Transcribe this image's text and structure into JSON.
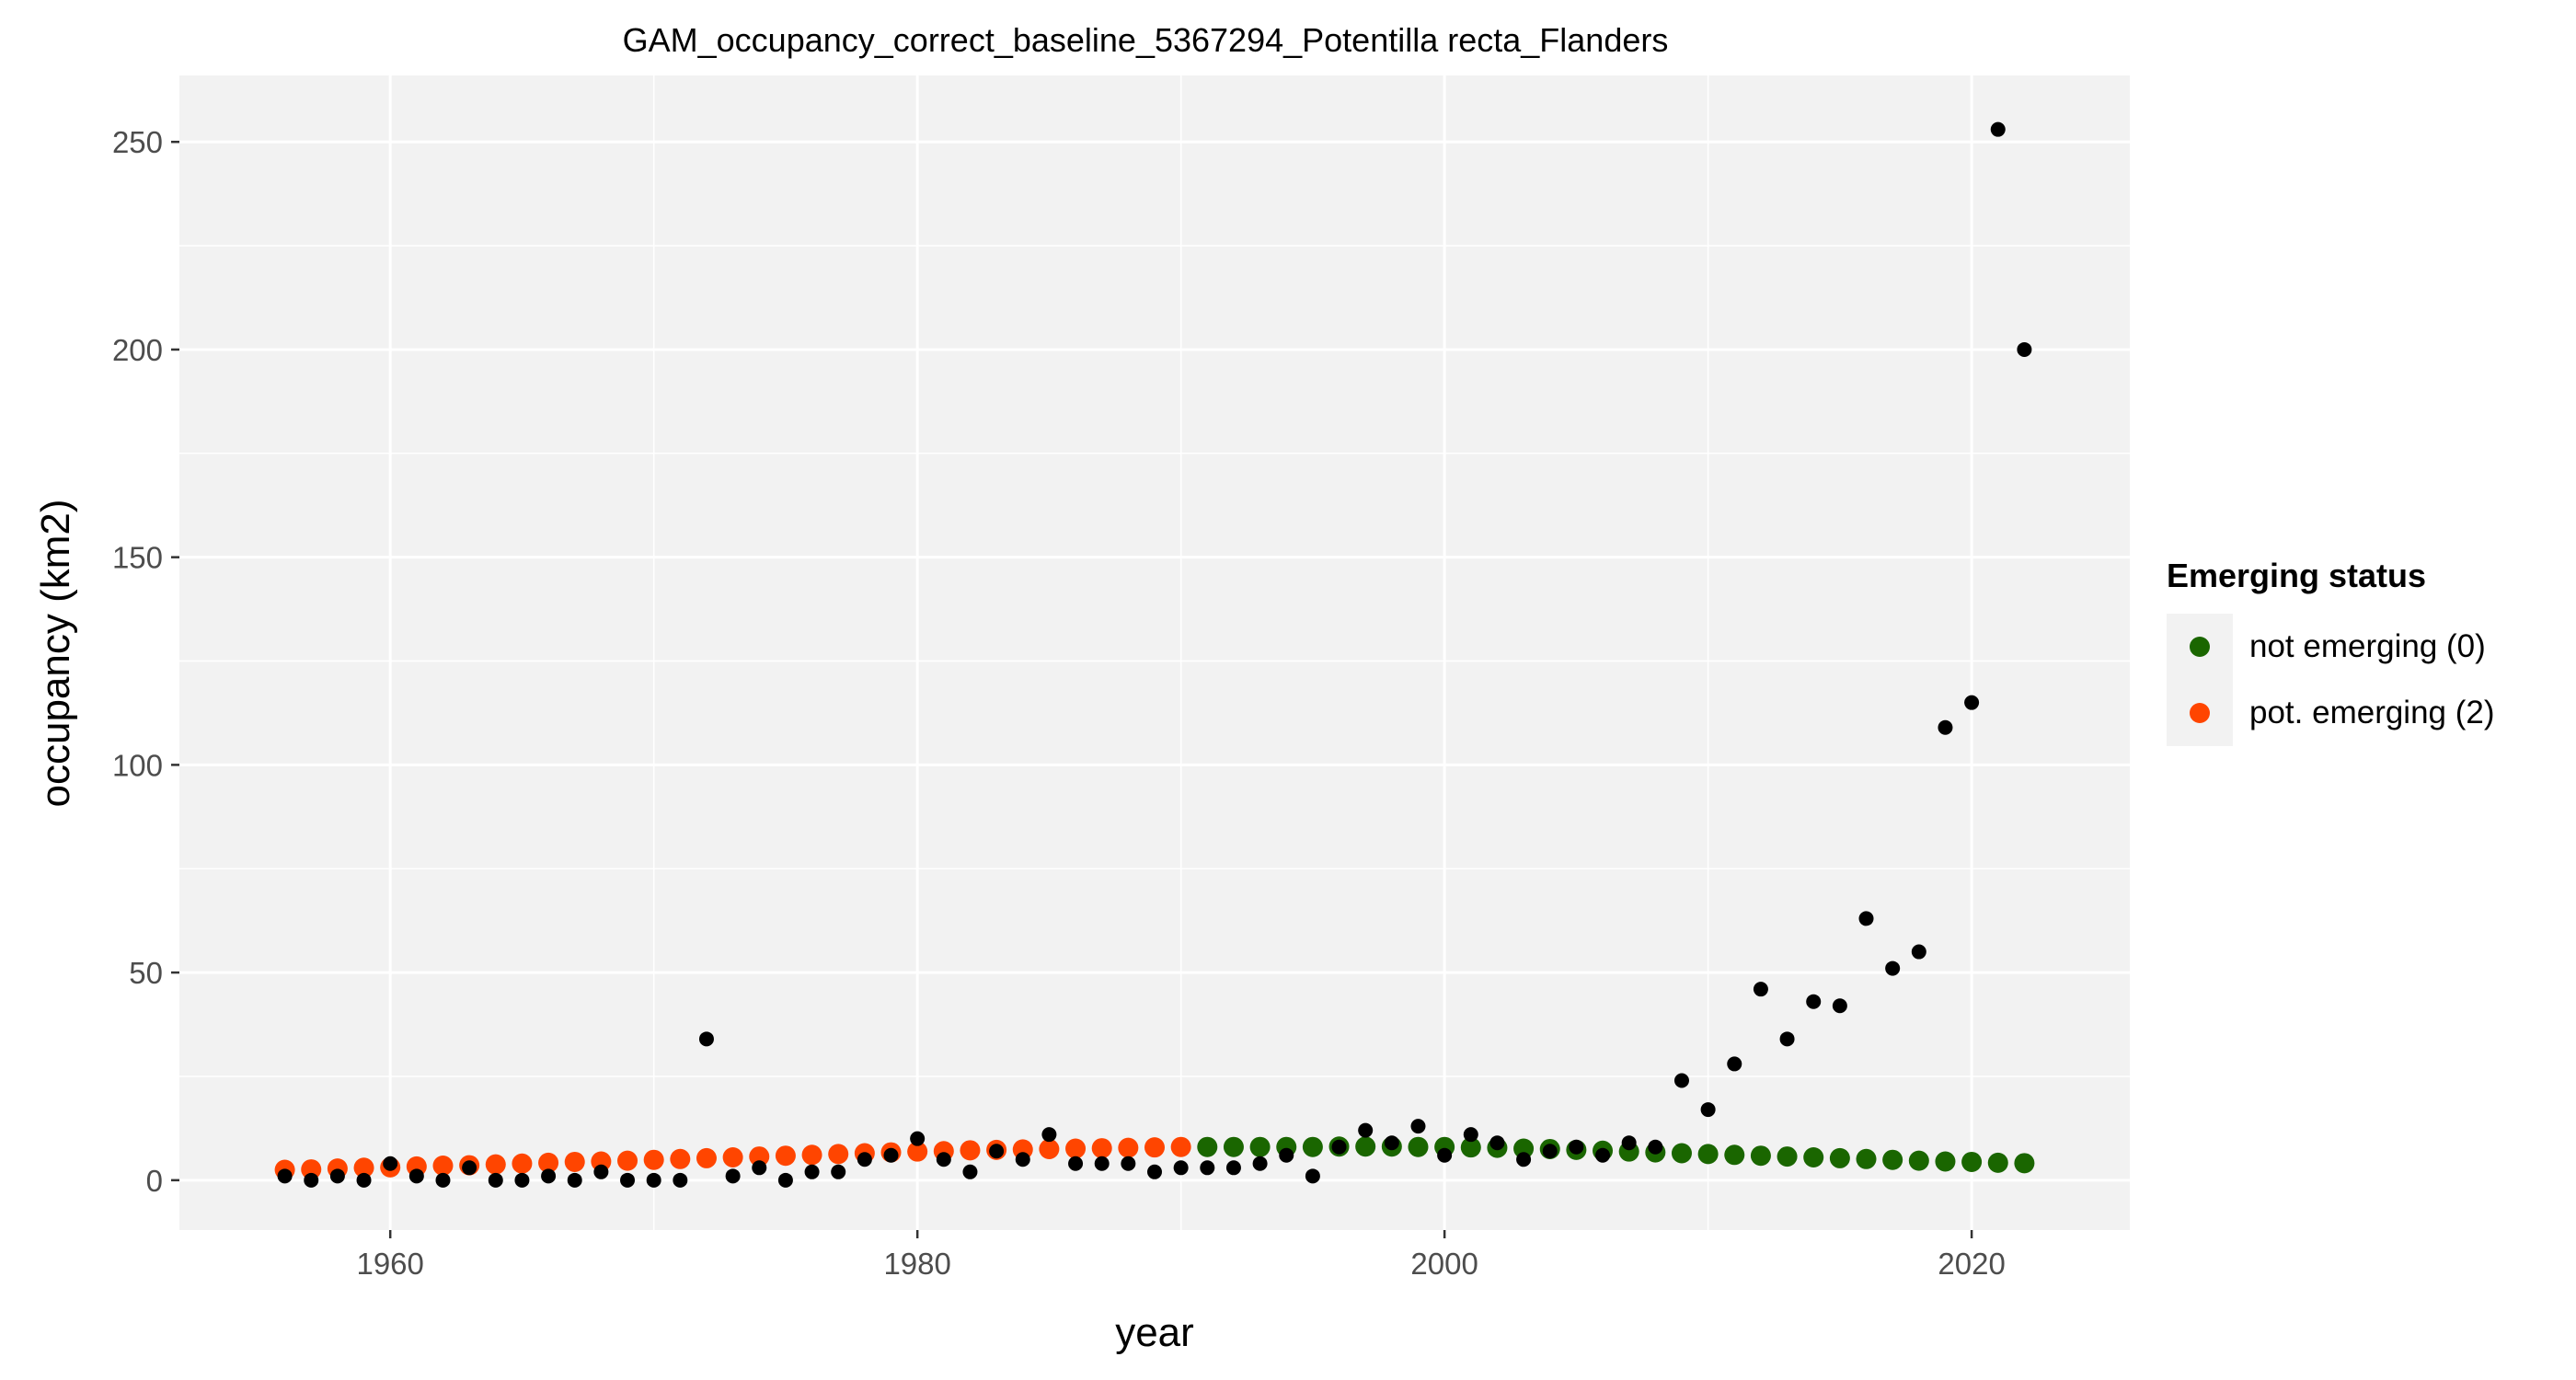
{
  "chart_data": {
    "type": "scatter",
    "title": "GAM_occupancy_correct_baseline_5367294_Potentilla recta_Flanders",
    "xlabel": "year",
    "ylabel": "occupancy (km2)",
    "xlim": [
      1952,
      2026
    ],
    "ylim": [
      -12,
      266
    ],
    "x_ticks": [
      1960,
      1980,
      2000,
      2020
    ],
    "y_ticks": [
      0,
      50,
      100,
      150,
      200,
      250
    ],
    "grid": true,
    "legend_position": "right",
    "colors": {
      "observed": "#000000",
      "not_emerging": "#1a6600",
      "pot_emerging": "#ff4500",
      "panel": "#f2f2f2",
      "grid": "#ffffff"
    },
    "observed": {
      "x": [
        1956,
        1957,
        1958,
        1959,
        1960,
        1961,
        1962,
        1963,
        1964,
        1965,
        1966,
        1967,
        1968,
        1969,
        1970,
        1971,
        1972,
        1973,
        1974,
        1975,
        1976,
        1977,
        1978,
        1979,
        1980,
        1981,
        1982,
        1983,
        1984,
        1985,
        1986,
        1987,
        1988,
        1989,
        1990,
        1991,
        1992,
        1993,
        1994,
        1995,
        1996,
        1997,
        1998,
        1999,
        2000,
        2001,
        2002,
        2003,
        2004,
        2005,
        2006,
        2007,
        2008,
        2009,
        2010,
        2011,
        2012,
        2013,
        2014,
        2015,
        2016,
        2017,
        2018,
        2019,
        2020,
        2021,
        2022
      ],
      "y": [
        1,
        0,
        1,
        0,
        4,
        1,
        0,
        3,
        0,
        0,
        1,
        0,
        2,
        0,
        0,
        0,
        34,
        1,
        3,
        0,
        2,
        2,
        5,
        6,
        10,
        5,
        2,
        7,
        5,
        11,
        4,
        4,
        4,
        2,
        3,
        3,
        3,
        4,
        6,
        1,
        8,
        12,
        9,
        13,
        6,
        11,
        9,
        5,
        7,
        8,
        6,
        9,
        8,
        24,
        17,
        28,
        46,
        34,
        43,
        42,
        63,
        51,
        55,
        109,
        115,
        253,
        200
      ]
    },
    "series": [
      {
        "name": "not emerging (0)",
        "x": [
          1991,
          1992,
          1993,
          1994,
          1995,
          1996,
          1997,
          1998,
          1999,
          2000,
          2001,
          2002,
          2003,
          2004,
          2005,
          2006,
          2007,
          2008,
          2009,
          2010,
          2011,
          2012,
          2013,
          2014,
          2015,
          2016,
          2017,
          2018,
          2019,
          2020,
          2021,
          2022
        ],
        "values": [
          8,
          8,
          8,
          8,
          8,
          8.1,
          8.1,
          8.1,
          8,
          8,
          7.9,
          7.8,
          7.6,
          7.5,
          7.3,
          7.1,
          6.9,
          6.7,
          6.5,
          6.3,
          6.1,
          5.9,
          5.7,
          5.5,
          5.3,
          5.1,
          4.9,
          4.7,
          4.5,
          4.4,
          4.2,
          4.1
        ]
      },
      {
        "name": "pot. emerging (2)",
        "x": [
          1956,
          1957,
          1958,
          1959,
          1960,
          1961,
          1962,
          1963,
          1964,
          1965,
          1966,
          1967,
          1968,
          1969,
          1970,
          1971,
          1972,
          1973,
          1974,
          1975,
          1976,
          1977,
          1978,
          1979,
          1980,
          1981,
          1982,
          1983,
          1984,
          1985,
          1986,
          1987,
          1988,
          1989,
          1990
        ],
        "values": [
          2.5,
          2.6,
          2.8,
          3,
          3.1,
          3.3,
          3.5,
          3.6,
          3.8,
          4,
          4.2,
          4.4,
          4.5,
          4.7,
          4.9,
          5.1,
          5.3,
          5.5,
          5.7,
          5.9,
          6.1,
          6.3,
          6.5,
          6.7,
          6.9,
          7,
          7.2,
          7.3,
          7.4,
          7.5,
          7.6,
          7.7,
          7.8,
          7.9,
          8
        ]
      }
    ]
  },
  "legend": {
    "title": "Emerging status",
    "items": [
      {
        "label": "not emerging (0)",
        "color": "#1a6600"
      },
      {
        "label": "pot. emerging (2)",
        "color": "#ff4500"
      }
    ]
  }
}
